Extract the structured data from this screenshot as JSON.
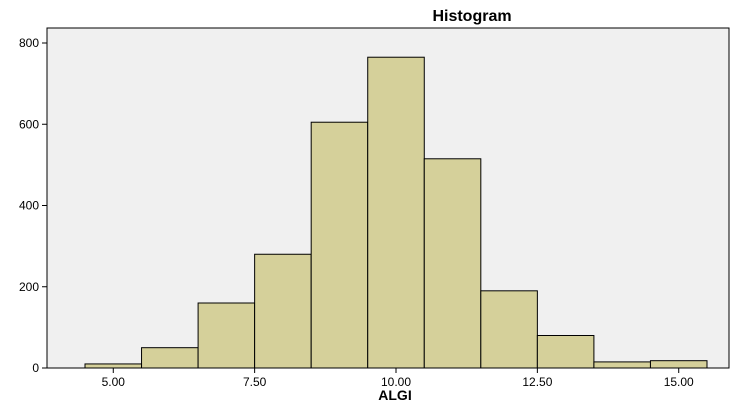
{
  "chart_data": {
    "type": "bar",
    "title": "Histogram",
    "xlabel": "ALGI",
    "ylabel": "",
    "bin_width": 1,
    "bin_centers": [
      5,
      6,
      7,
      8,
      9,
      10,
      11,
      12,
      13,
      14,
      15
    ],
    "values": [
      10,
      50,
      160,
      280,
      605,
      765,
      515,
      190,
      80,
      15,
      18
    ],
    "xlim": [
      4.5,
      15.5
    ],
    "ylim": [
      0,
      800
    ],
    "xticks": [
      "5.00",
      "7.50",
      "10.00",
      "12.50",
      "15.00"
    ],
    "xtick_values": [
      5,
      7.5,
      10,
      12.5,
      15
    ],
    "yticks": [
      "0",
      "200",
      "400",
      "600",
      "800"
    ],
    "ytick_values": [
      0,
      200,
      400,
      600,
      800
    ],
    "grid": false,
    "bar_color": "#d5d09a",
    "frame_color": "#f0f0f0"
  }
}
